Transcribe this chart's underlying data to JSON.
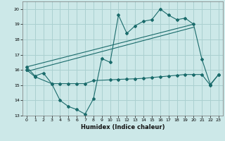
{
  "title": "",
  "xlabel": "Humidex (Indice chaleur)",
  "ylabel": "",
  "background_color": "#cce8e8",
  "grid_color": "#aad0d0",
  "line_color": "#1a6b6b",
  "xlim": [
    -0.5,
    23.5
  ],
  "ylim": [
    13,
    20.5
  ],
  "yticks": [
    13,
    14,
    15,
    16,
    17,
    18,
    19,
    20
  ],
  "xticks": [
    0,
    1,
    2,
    3,
    4,
    5,
    6,
    7,
    8,
    9,
    10,
    11,
    12,
    13,
    14,
    15,
    16,
    17,
    18,
    19,
    20,
    21,
    22,
    23
  ],
  "series": {
    "line1_x": [
      0,
      1,
      2,
      3,
      4,
      5,
      6,
      7,
      8,
      9,
      10,
      11,
      12,
      13,
      14,
      15,
      16,
      17,
      18,
      19,
      20,
      21,
      22,
      23
    ],
    "line1_y": [
      16.2,
      15.6,
      15.8,
      15.1,
      14.0,
      13.6,
      13.4,
      13.1,
      14.1,
      16.75,
      16.5,
      19.6,
      18.4,
      18.9,
      19.2,
      19.3,
      20.0,
      19.6,
      19.3,
      19.4,
      19.0,
      16.7,
      15.05,
      15.7
    ],
    "line2_x": [
      0,
      20
    ],
    "line2_y": [
      16.2,
      19.0
    ],
    "line3_x": [
      0,
      20
    ],
    "line3_y": [
      15.9,
      18.8
    ],
    "line4_x": [
      0,
      1,
      3,
      4,
      5,
      6,
      7,
      8,
      10,
      11,
      12,
      13,
      14,
      15,
      16,
      17,
      18,
      19,
      20,
      21,
      22,
      23
    ],
    "line4_y": [
      16.0,
      15.55,
      15.1,
      15.1,
      15.1,
      15.1,
      15.1,
      15.3,
      15.35,
      15.38,
      15.4,
      15.42,
      15.45,
      15.5,
      15.55,
      15.6,
      15.65,
      15.7,
      15.7,
      15.7,
      15.0,
      15.7
    ]
  }
}
